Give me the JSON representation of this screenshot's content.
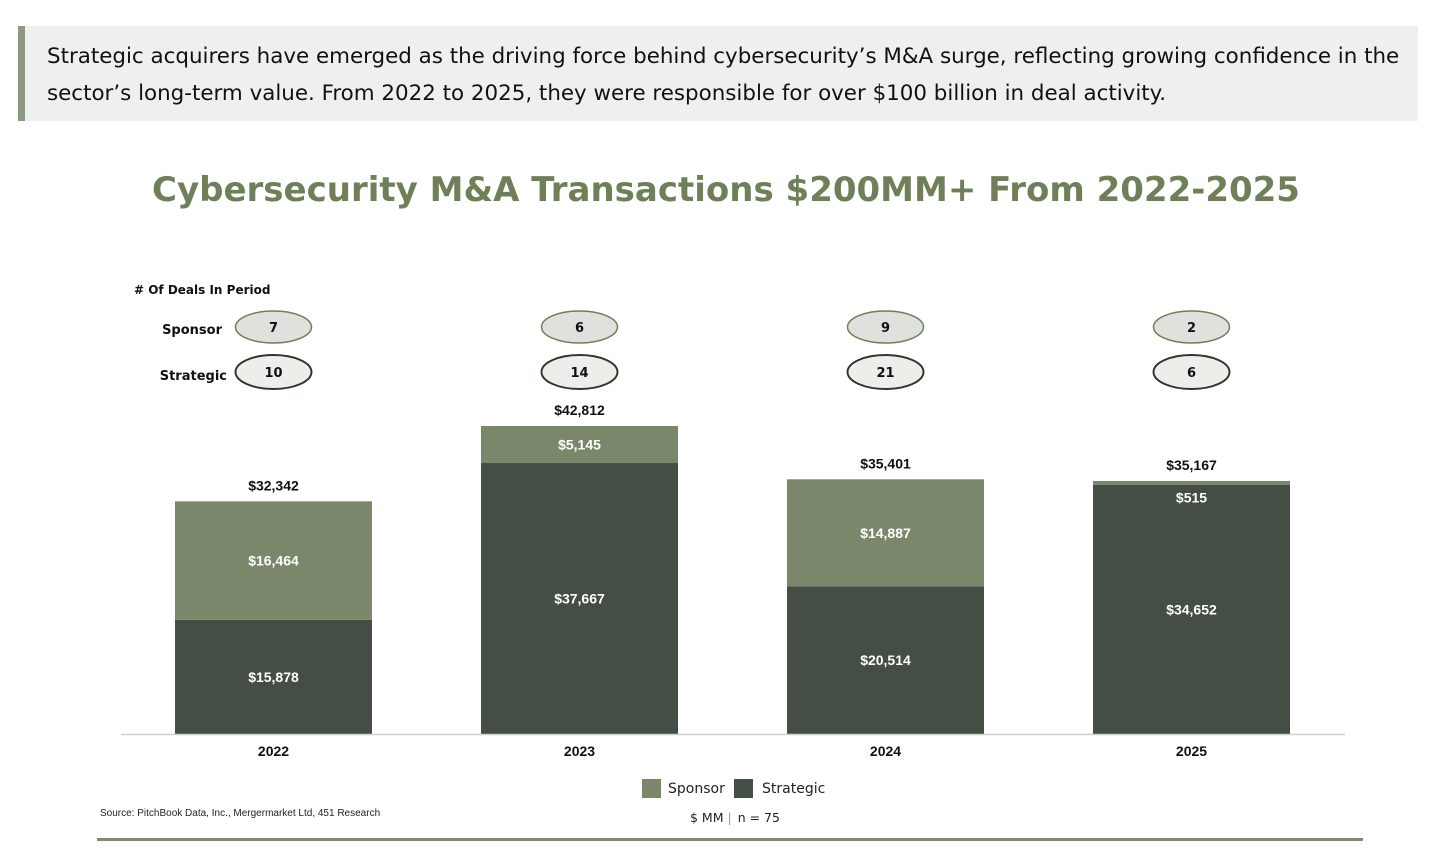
{
  "intro_text": "Strategic acquirers have emerged as the driving force behind cybersecurity’s M&A surge, reflecting growing confidence in the sector’s long-term value. From 2022 to 2025, they were responsible for over $100 billion in deal activity.",
  "colors": {
    "sponsor": "#7b876b",
    "strategic": "#454e45",
    "title": "#6f7f57",
    "sponsor_bubble_fill": "#dfe2dc",
    "strategic_bubble_fill": "#eceeea",
    "sponsor_bubble_stroke": "#6f7f57",
    "strategic_bubble_stroke": "#2e362e"
  },
  "chart_data": {
    "type": "bar",
    "stacked": true,
    "title": "Cybersecurity M&A Transactions $200MM+ From 2022-2025",
    "categories": [
      "2022",
      "2023",
      "2024",
      "2025"
    ],
    "series": [
      {
        "name": "Strategic",
        "values": [
          15878,
          37667,
          20514,
          34652
        ],
        "labels": [
          "$15,878",
          "$37,667",
          "$20,514",
          "$34,652"
        ]
      },
      {
        "name": "Sponsor",
        "values": [
          16464,
          5145,
          14887,
          515
        ],
        "labels": [
          "$16,464",
          "$5,145",
          "$14,887",
          "$515"
        ]
      }
    ],
    "totals": [
      32342,
      42812,
      35401,
      35167
    ],
    "total_labels": [
      "$32,342",
      "$42,812",
      "$35,401",
      "$35,167"
    ],
    "deal_counts": {
      "heading": "# Of Deals In Period",
      "sponsor_label": "Sponsor",
      "strategic_label": "Strategic",
      "sponsor": [
        "7",
        "6",
        "9",
        "2"
      ],
      "strategic": [
        "10",
        "14",
        "21",
        "6"
      ]
    },
    "legend": [
      "Sponsor",
      "Strategic"
    ],
    "legend_position": "bottom-center",
    "units": "$ MM",
    "sample": "n = 75",
    "ylim": [
      0,
      42812
    ],
    "grid": false
  },
  "source": "Source: PitchBook Data, Inc., Mergermarket Ltd, 451 Research"
}
